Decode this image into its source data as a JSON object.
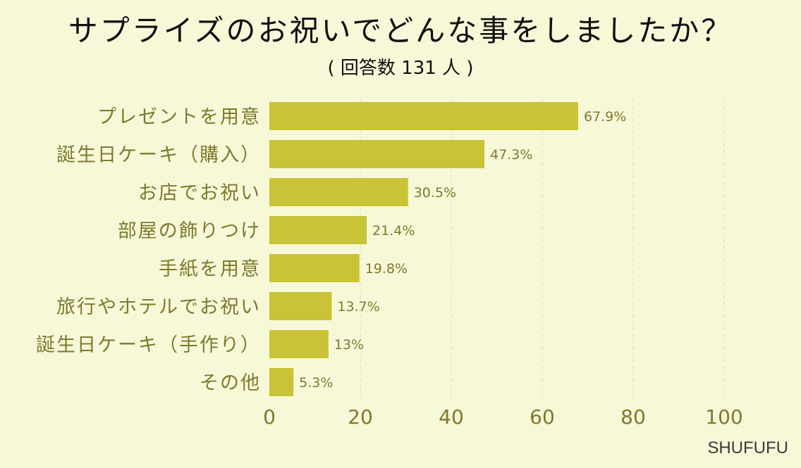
{
  "title": "サプライズのお祝いでどんな事をしましたか？",
  "subtitle": "( 回答数 131 人 )",
  "watermark": "SHUFUFU",
  "colors": {
    "background": "#f7f8d8",
    "bar": "#c9c337",
    "label": "#7d7a2c",
    "grid": "#dcdcc6"
  },
  "chart_data": {
    "type": "bar",
    "orientation": "horizontal",
    "categories": [
      "プレゼントを用意",
      "誕生日ケーキ（購入）",
      "お店でお祝い",
      "部屋の飾りつけ",
      "手紙を用意",
      "旅行やホテルでお祝い",
      "誕生日ケーキ（手作り）",
      "その他"
    ],
    "values": [
      67.9,
      47.3,
      30.5,
      21.4,
      19.8,
      13.7,
      13,
      5.3
    ],
    "value_labels": [
      "67.9%",
      "47.3%",
      "30.5%",
      "21.4%",
      "19.8%",
      "13.7%",
      "13%",
      "5.3%"
    ],
    "xlim": [
      0,
      100
    ],
    "xticks": [
      0,
      20,
      40,
      60,
      80,
      100
    ],
    "xtick_labels": [
      "0",
      "20",
      "40",
      "60",
      "80",
      "100"
    ],
    "grid": "vertical-dashed"
  }
}
